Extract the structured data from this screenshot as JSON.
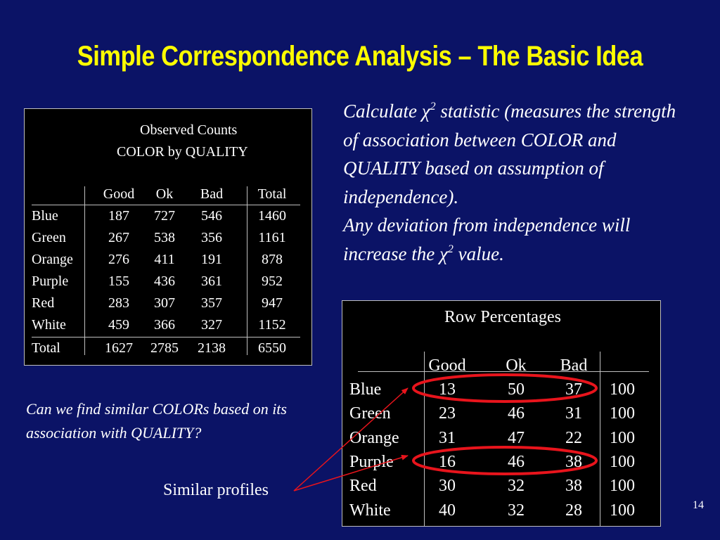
{
  "slide": {
    "title": "Simple Correspondence Analysis – The Basic Idea",
    "page_number": "14"
  },
  "observed_table": {
    "title_line1": "Observed Counts",
    "title_line2": "COLOR by QUALITY",
    "headers": [
      "Good",
      "Ok",
      "Bad",
      "Total"
    ],
    "rows": [
      {
        "label": "Blue",
        "values": [
          "187",
          "727",
          "546",
          "1460"
        ]
      },
      {
        "label": "Green",
        "values": [
          "267",
          "538",
          "356",
          "1161"
        ]
      },
      {
        "label": "Orange",
        "values": [
          "276",
          "411",
          "191",
          "878"
        ]
      },
      {
        "label": "Purple",
        "values": [
          "155",
          "436",
          "361",
          "952"
        ]
      },
      {
        "label": "Red",
        "values": [
          "283",
          "307",
          "357",
          "947"
        ]
      },
      {
        "label": "White",
        "values": [
          "459",
          "366",
          "327",
          "1152"
        ]
      },
      {
        "label": "Total",
        "values": [
          "1627",
          "2785",
          "2138",
          "6550"
        ]
      }
    ]
  },
  "explanation": {
    "part1": "Calculate ",
    "chi_symbol": "χ",
    "superscript": "2",
    "part2": " statistic (measures the strength of association between COLOR and QUALITY based on assumption of independence).",
    "part3": "Any deviation from independence will increase the ",
    "part4": "  value."
  },
  "row_percentages": {
    "title": "Row Percentages",
    "headers": [
      "Good",
      "Ok",
      "Bad"
    ],
    "rows": [
      {
        "label": "Blue",
        "values": [
          "13",
          "50",
          "37",
          "100"
        ]
      },
      {
        "label": "Green",
        "values": [
          "23",
          "46",
          "31",
          "100"
        ]
      },
      {
        "label": "Orange",
        "values": [
          "31",
          "47",
          "22",
          "100"
        ]
      },
      {
        "label": "Purple",
        "values": [
          "16",
          "46",
          "38",
          "100"
        ]
      },
      {
        "label": "Red",
        "values": [
          "30",
          "32",
          "38",
          "100"
        ]
      },
      {
        "label": "White",
        "values": [
          "40",
          "32",
          "28",
          "100"
        ]
      }
    ]
  },
  "question": "Can we find similar COLORs based on its association with QUALITY?",
  "annotation": "Similar profiles",
  "colors": {
    "background": "#0b1366",
    "title": "#ffff00",
    "highlight": "#e8141c",
    "text": "#ffffff"
  }
}
